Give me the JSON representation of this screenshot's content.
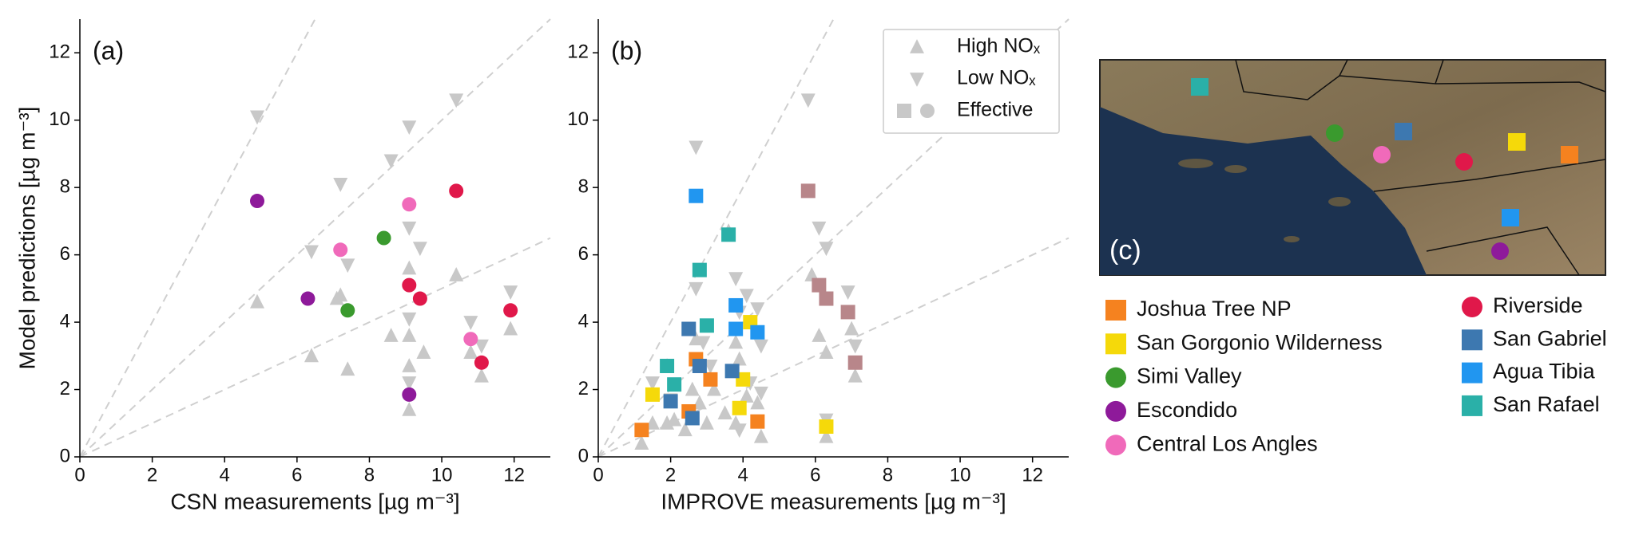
{
  "chart_data": [
    {
      "type": "scatter",
      "panel_label": "(a)",
      "x_label": "CSN measurements [µg m⁻³]",
      "y_label": "Model predictions [µg m⁻³]",
      "xlim": [
        0,
        13
      ],
      "ylim": [
        0,
        13
      ],
      "xticks": [
        0,
        2,
        4,
        6,
        8,
        10,
        12
      ],
      "yticks": [
        0,
        2,
        4,
        6,
        8,
        10,
        12
      ],
      "reference_slopes": [
        0.5,
        1,
        2
      ],
      "series": [
        {
          "marker": "triangle-up",
          "color": "#c8c8c8",
          "x": [
            4.9,
            6.4,
            7.4,
            7.1,
            8.6,
            9.1,
            9.1,
            9.5,
            9.1,
            10.4,
            10.8,
            11.1,
            11.9,
            9.1,
            7.2
          ],
          "values": [
            4.6,
            3.0,
            2.6,
            4.7,
            3.6,
            3.6,
            1.4,
            3.1,
            5.6,
            5.4,
            3.1,
            2.4,
            3.8,
            2.7,
            4.8
          ]
        },
        {
          "marker": "triangle-down",
          "color": "#c8c8c8",
          "x": [
            4.9,
            6.4,
            7.2,
            7.4,
            8.6,
            9.1,
            9.1,
            9.4,
            10.4,
            10.8,
            11.9,
            9.1,
            11.1,
            9.1
          ],
          "values": [
            10.1,
            6.1,
            8.1,
            5.7,
            8.8,
            9.8,
            6.8,
            6.2,
            10.6,
            4.0,
            4.9,
            2.2,
            3.3,
            4.1
          ]
        },
        {
          "marker": "circle",
          "color": "#e0184a",
          "x": [
            10.4,
            9.1,
            9.4,
            11.9,
            11.1
          ],
          "values": [
            7.9,
            5.1,
            4.7,
            4.35,
            2.8
          ]
        },
        {
          "marker": "circle",
          "color": "#3a9a2e",
          "x": [
            8.4,
            7.4
          ],
          "values": [
            6.5,
            4.35
          ]
        },
        {
          "marker": "circle",
          "color": "#8e1a9a",
          "x": [
            4.9,
            6.3,
            9.1
          ],
          "values": [
            7.6,
            4.7,
            1.85
          ]
        },
        {
          "marker": "circle",
          "color": "#f06aba",
          "x": [
            9.1,
            7.2,
            10.8
          ],
          "values": [
            7.5,
            6.15,
            3.5
          ]
        }
      ]
    },
    {
      "type": "scatter",
      "panel_label": "(b)",
      "x_label": "IMPROVE measurements [µg m⁻³]",
      "xlim": [
        0,
        13
      ],
      "ylim": [
        0,
        13
      ],
      "xticks": [
        0,
        2,
        4,
        6,
        8,
        10,
        12
      ],
      "yticks": [
        0,
        2,
        4,
        6,
        8,
        10,
        12
      ],
      "reference_slopes": [
        0.5,
        1,
        2
      ],
      "legend": {
        "loc": "upper right",
        "effective_label": "Effective"
      },
      "series": [
        {
          "name": "High NOₓ",
          "marker": "triangle-up",
          "color": "#c8c8c8",
          "x": [
            1.2,
            1.5,
            1.9,
            2.1,
            2.4,
            2.6,
            2.8,
            3.0,
            3.2,
            3.5,
            3.8,
            3.9,
            4.1,
            4.4,
            4.5,
            2.7,
            3.8,
            5.9,
            6.1,
            6.3,
            6.3,
            7.1,
            7.0,
            3.6,
            1.9
          ],
          "values": [
            0.4,
            1.0,
            1.0,
            1.1,
            0.8,
            2.0,
            1.6,
            1.0,
            2.0,
            1.3,
            1.0,
            2.9,
            1.8,
            1.6,
            0.6,
            3.5,
            3.4,
            5.4,
            3.6,
            3.1,
            0.6,
            2.4,
            3.8,
            6.7,
            2.7
          ]
        },
        {
          "name": "Low NOₓ",
          "marker": "triangle-down",
          "color": "#c8c8c8",
          "x": [
            1.2,
            1.5,
            2.0,
            2.5,
            2.7,
            2.7,
            2.9,
            3.1,
            3.8,
            3.9,
            4.1,
            4.4,
            4.5,
            3.9,
            4.2,
            5.8,
            6.1,
            6.3,
            6.9,
            7.1,
            6.3,
            4.5
          ],
          "values": [
            0.8,
            2.2,
            1.7,
            1.2,
            9.2,
            5.0,
            3.4,
            2.7,
            5.3,
            4.3,
            4.8,
            4.4,
            3.3,
            0.8,
            2.2,
            10.6,
            6.8,
            6.2,
            4.9,
            3.3,
            1.1,
            1.9
          ]
        },
        {
          "marker": "square",
          "color": "#f5821f",
          "x": [
            1.2,
            2.5,
            2.7,
            3.1,
            4.4
          ],
          "values": [
            0.8,
            1.35,
            2.9,
            2.3,
            1.05
          ]
        },
        {
          "marker": "square",
          "color": "#f5d90a",
          "x": [
            1.5,
            3.9,
            4.0,
            4.2,
            6.3
          ],
          "values": [
            1.85,
            1.45,
            2.3,
            4.0,
            0.9
          ]
        },
        {
          "marker": "square",
          "color": "#3d78b0",
          "x": [
            2.0,
            2.5,
            2.6,
            2.8,
            3.7
          ],
          "values": [
            1.65,
            3.8,
            1.15,
            2.7,
            2.55
          ]
        },
        {
          "marker": "square",
          "color": "#2196f0",
          "x": [
            2.7,
            3.8,
            3.8,
            4.4
          ],
          "values": [
            7.75,
            4.5,
            3.8,
            3.7
          ]
        },
        {
          "marker": "square",
          "color": "#2ab0a8",
          "x": [
            1.9,
            2.1,
            2.8,
            3.0,
            3.6
          ],
          "values": [
            2.7,
            2.15,
            5.55,
            3.9,
            6.6
          ]
        },
        {
          "marker": "square",
          "color": "#b8868a",
          "x": [
            5.8,
            6.1,
            6.3,
            6.9,
            7.1
          ],
          "values": [
            7.9,
            5.1,
            4.7,
            4.3,
            2.8
          ]
        }
      ]
    }
  ],
  "map": {
    "label": "(c)"
  },
  "site_legend": [
    {
      "name": "Joshua Tree NP",
      "color": "#f5821f",
      "marker": "square"
    },
    {
      "name": "San Gorgonio Wilderness",
      "color": "#f5d90a",
      "marker": "square"
    },
    {
      "name": "Simi Valley",
      "color": "#3a9a2e",
      "marker": "circle"
    },
    {
      "name": "Escondido",
      "color": "#8e1a9a",
      "marker": "circle"
    },
    {
      "name": "Central Los Angles",
      "color": "#f06aba",
      "marker": "circle"
    },
    {
      "name": "Riverside",
      "color": "#e0184a",
      "marker": "circle"
    },
    {
      "name": "San Gabriel",
      "color": "#3d78b0",
      "marker": "square"
    },
    {
      "name": "Agua Tibia",
      "color": "#2196f0",
      "marker": "square"
    },
    {
      "name": "San Rafael",
      "color": "#2ab0a8",
      "marker": "square"
    }
  ]
}
